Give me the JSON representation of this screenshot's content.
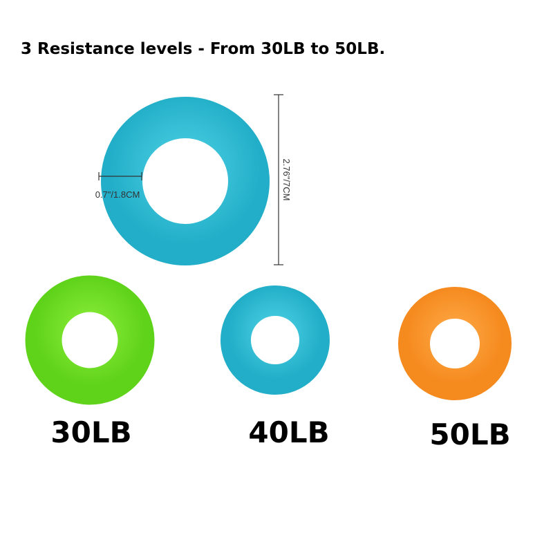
{
  "title": "3 Resistance levels - From 30LB to 50LB.",
  "dimensions": {
    "outer": "2.76\"/7CM",
    "hole": "0.7\"/1.8CM"
  },
  "rings": [
    {
      "label": "30LB"
    },
    {
      "label": "40LB"
    },
    {
      "label": "50LB"
    }
  ]
}
